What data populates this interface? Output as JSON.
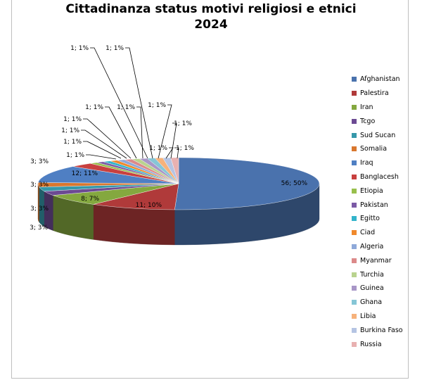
{
  "chart_data": {
    "type": "pie",
    "title_line1": "Cittadinanza status motivi religiosi e etnici",
    "title_line2": "2024",
    "legend_position": "right",
    "series": [
      {
        "name": "Afghanistan",
        "value": 56,
        "label": "56; 50%",
        "color": "#4a72ad"
      },
      {
        "name": "Palestira",
        "value": 11,
        "label": "11; 10%",
        "color": "#b03a3a"
      },
      {
        "name": "Iran",
        "value": 8,
        "label": "8; 7%",
        "color": "#84a83f"
      },
      {
        "name": "Tcgo",
        "value": 3,
        "label": "3; 3%",
        "color": "#6c4a93"
      },
      {
        "name": "Sud Sucan",
        "value": 3,
        "label": "3; 3%",
        "color": "#3698aa"
      },
      {
        "name": "Somalia",
        "value": 3,
        "label": "3; 3%",
        "color": "#d9772e"
      },
      {
        "name": "Iraq",
        "value": 12,
        "label": "12; 11%",
        "color": "#4f7fc3"
      },
      {
        "name": "Banglacesh",
        "value": 3,
        "label": "3; 3%",
        "color": "#c8403f"
      },
      {
        "name": "Etiopia",
        "value": 1,
        "label": "1; 1%",
        "color": "#98bf4c"
      },
      {
        "name": "Pakistan",
        "value": 1,
        "label": "1; 1%",
        "color": "#7b5aa5"
      },
      {
        "name": "Egitto",
        "value": 1,
        "label": "1; 1%",
        "color": "#33b4cb"
      },
      {
        "name": "Ciad",
        "value": 1,
        "label": "1; 1%",
        "color": "#f0892c"
      },
      {
        "name": "Algeria",
        "value": 1,
        "label": "1; 1%",
        "color": "#8fa9d9"
      },
      {
        "name": "Myanmar",
        "value": 1,
        "label": "1; 1%",
        "color": "#dc8a8a"
      },
      {
        "name": "Turchia",
        "value": 1,
        "label": "1; 1%",
        "color": "#b9d38f"
      },
      {
        "name": "Guinea",
        "value": 1,
        "label": "1; 1%",
        "color": "#a896c7"
      },
      {
        "name": "Ghana",
        "value": 1,
        "label": "1; 1%",
        "color": "#86c6d6"
      },
      {
        "name": "Libia",
        "value": 1,
        "label": "1; 1%",
        "color": "#f6b27b"
      },
      {
        "name": "Burkina Faso",
        "value": 1,
        "label": "1; 1%",
        "color": "#b5c4e3"
      },
      {
        "name": "Russia",
        "value": 1,
        "label": "1; 1%",
        "color": "#e8b1b1"
      }
    ]
  }
}
